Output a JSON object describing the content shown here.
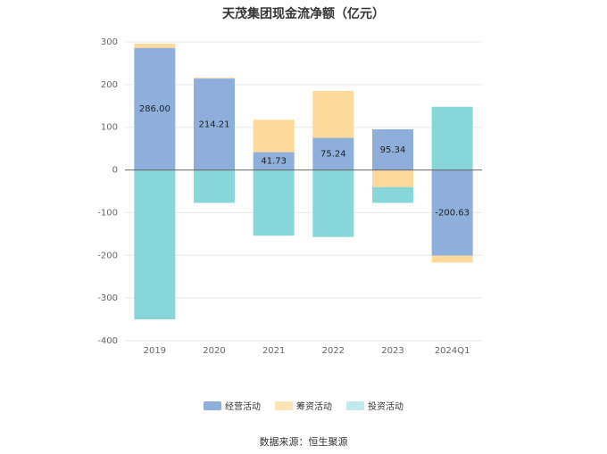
{
  "title": "天茂集团现金流净额（亿元）",
  "source": "数据来源：恒生聚源",
  "chart_data": {
    "type": "bar",
    "stacked": true,
    "title": "天茂集团现金流净额（亿元）",
    "categories": [
      "2019",
      "2020",
      "2021",
      "2022",
      "2023",
      "2024Q1"
    ],
    "ylim": [
      -400,
      300
    ],
    "yticks": [
      300,
      200,
      100,
      0,
      -100,
      -200,
      -300,
      -400
    ],
    "grid": true,
    "legend_position": "bottom",
    "series": [
      {
        "name": "经营活动",
        "color": "#8eaedc",
        "values": [
          286.0,
          214.21,
          41.73,
          75.24,
          95.34,
          -200.63
        ],
        "labeled": true
      },
      {
        "name": "筹资活动",
        "color": "#fdd99a",
        "values": [
          10,
          2,
          76,
          110,
          -40,
          -16
        ],
        "labeled": false
      },
      {
        "name": "投资活动",
        "color": "#86d6da",
        "values": [
          -350,
          -77,
          -154,
          -157,
          -37,
          148
        ],
        "labeled": false
      }
    ],
    "data_labels": [
      "286.00",
      "214.21",
      "41.73",
      "75.24",
      "95.34",
      "-200.63"
    ]
  }
}
